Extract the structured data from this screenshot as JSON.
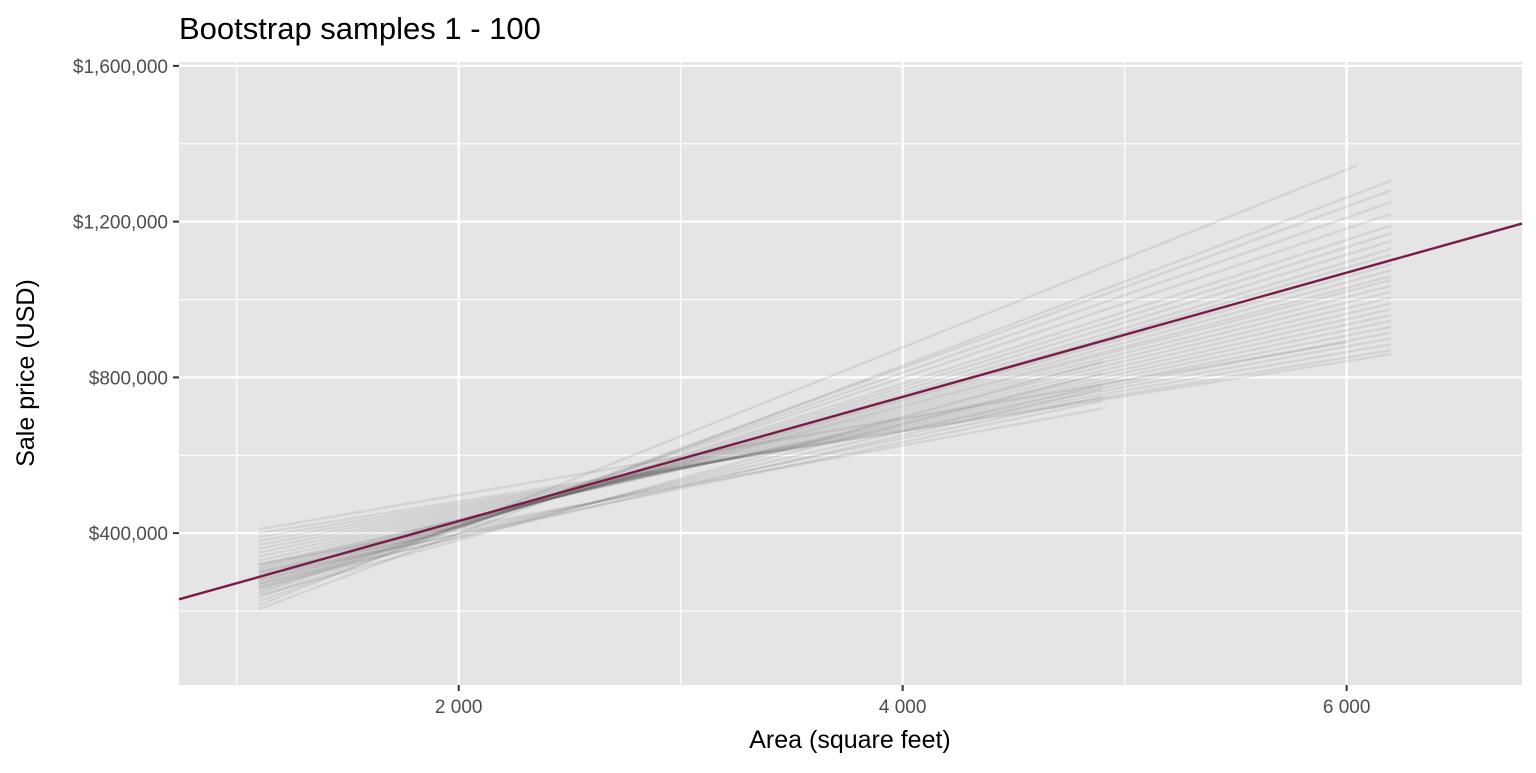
{
  "chart_data": {
    "type": "line",
    "title": "Bootstrap samples 1 - 100",
    "xlabel": "Area (square feet)",
    "ylabel": "Sale price (USD)",
    "xlim": [
      740,
      6790
    ],
    "ylim": [
      10000,
      1610000
    ],
    "x_ticks": [
      2000,
      4000,
      6000
    ],
    "x_tick_labels": [
      "2 000",
      "4 000",
      "6 000"
    ],
    "x_minor_ticks": [
      1000,
      3000,
      5000
    ],
    "y_ticks": [
      400000,
      800000,
      1200000,
      1600000
    ],
    "y_tick_labels": [
      "$400,000",
      "$800,000",
      "$1,200,000",
      "$1,600,000"
    ],
    "y_minor_ticks": [
      200000,
      600000,
      1000000,
      1400000
    ],
    "grid": true,
    "legend": "none",
    "colors": {
      "panel_background": "#e5e5e5",
      "grid": "#ffffff",
      "bootstrap_lines": "#595959",
      "fit_line": "#7a1c48"
    },
    "fit_line": {
      "x": [
        740,
        6790
      ],
      "y": [
        230000,
        1195000
      ]
    },
    "bootstrap_lines": {
      "count": 100,
      "description_of_spread": "faint grey regression lines from bootstrap resamples",
      "lines": [
        {
          "x": [
            1100,
            6200
          ],
          "y": [
            205000,
            1305000
          ]
        },
        {
          "x": [
            1100,
            6050
          ],
          "y": [
            215000,
            1345000
          ]
        },
        {
          "x": [
            1100,
            6200
          ],
          "y": [
            225000,
            1280000
          ]
        },
        {
          "x": [
            1100,
            6200
          ],
          "y": [
            235000,
            1250000
          ]
        },
        {
          "x": [
            1100,
            6200
          ],
          "y": [
            245000,
            1220000
          ]
        },
        {
          "x": [
            1100,
            6200
          ],
          "y": [
            250000,
            1190000
          ]
        },
        {
          "x": [
            1100,
            6200
          ],
          "y": [
            255000,
            1170000
          ]
        },
        {
          "x": [
            1100,
            6200
          ],
          "y": [
            260000,
            1150000
          ]
        },
        {
          "x": [
            1100,
            6200
          ],
          "y": [
            265000,
            1130000
          ]
        },
        {
          "x": [
            1100,
            6200
          ],
          "y": [
            270000,
            1115000
          ]
        },
        {
          "x": [
            1100,
            6200
          ],
          "y": [
            275000,
            1100000
          ]
        },
        {
          "x": [
            1100,
            6200
          ],
          "y": [
            280000,
            1090000
          ]
        },
        {
          "x": [
            1100,
            6200
          ],
          "y": [
            285000,
            1075000
          ]
        },
        {
          "x": [
            1100,
            6200
          ],
          "y": [
            290000,
            1060000
          ]
        },
        {
          "x": [
            1100,
            6200
          ],
          "y": [
            295000,
            1050000
          ]
        },
        {
          "x": [
            1100,
            6200
          ],
          "y": [
            300000,
            1035000
          ]
        },
        {
          "x": [
            1100,
            6200
          ],
          "y": [
            305000,
            1020000
          ]
        },
        {
          "x": [
            1100,
            6200
          ],
          "y": [
            310000,
            1005000
          ]
        },
        {
          "x": [
            1100,
            6200
          ],
          "y": [
            315000,
            990000
          ]
        },
        {
          "x": [
            1100,
            6200
          ],
          "y": [
            320000,
            975000
          ]
        },
        {
          "x": [
            1100,
            6200
          ],
          "y": [
            330000,
            960000
          ]
        },
        {
          "x": [
            1100,
            6200
          ],
          "y": [
            340000,
            945000
          ]
        },
        {
          "x": [
            1100,
            6200
          ],
          "y": [
            350000,
            930000
          ]
        },
        {
          "x": [
            1100,
            6200
          ],
          "y": [
            360000,
            915000
          ]
        },
        {
          "x": [
            1100,
            6200
          ],
          "y": [
            370000,
            900000
          ]
        },
        {
          "x": [
            1100,
            6200
          ],
          "y": [
            380000,
            885000
          ]
        },
        {
          "x": [
            1100,
            6200
          ],
          "y": [
            390000,
            870000
          ]
        },
        {
          "x": [
            1100,
            6200
          ],
          "y": [
            400000,
            860000
          ]
        },
        {
          "x": [
            1100,
            6000
          ],
          "y": [
            410000,
            890000
          ]
        },
        {
          "x": [
            1100,
            4900
          ],
          "y": [
            240000,
            840000
          ]
        },
        {
          "x": [
            1100,
            4900
          ],
          "y": [
            260000,
            810000
          ]
        },
        {
          "x": [
            1100,
            4900
          ],
          "y": [
            280000,
            780000
          ]
        },
        {
          "x": [
            1100,
            4900
          ],
          "y": [
            300000,
            750000
          ]
        },
        {
          "x": [
            1100,
            4900
          ],
          "y": [
            320000,
            720000
          ]
        },
        {
          "x": [
            1100,
            4900
          ],
          "y": [
            270000,
            770000
          ]
        },
        {
          "x": [
            1100,
            4900
          ],
          "y": [
            290000,
            740000
          ]
        }
      ]
    }
  }
}
